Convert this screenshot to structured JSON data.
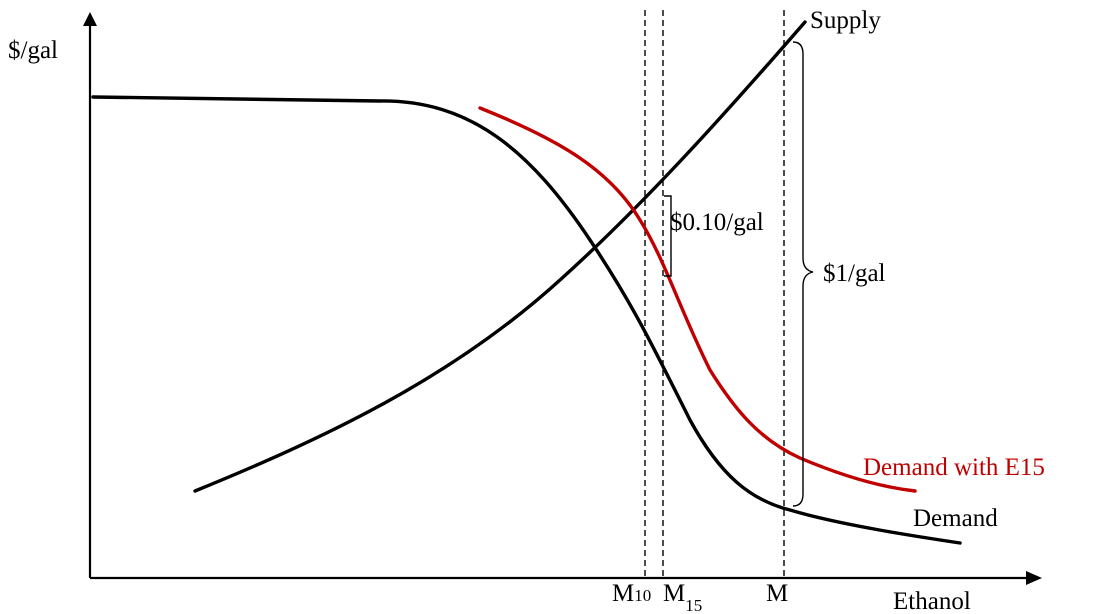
{
  "diagram": {
    "y_axis_label": "$/gal",
    "x_axis_label": "Ethanol",
    "curves": {
      "supply": {
        "label": "Supply",
        "color": "#000000"
      },
      "demand": {
        "label": "Demand",
        "color": "#000000"
      },
      "demand_e15": {
        "label": "Demand with E15",
        "color": "#c00000"
      }
    },
    "markers": {
      "m10": {
        "base": "M",
        "sub": "10"
      },
      "m15": {
        "base": "M",
        "sub": "15"
      },
      "m": {
        "label": "M"
      }
    },
    "annotations": {
      "small_gap": "$0.10/gal",
      "large_gap": "$1/gal"
    }
  }
}
